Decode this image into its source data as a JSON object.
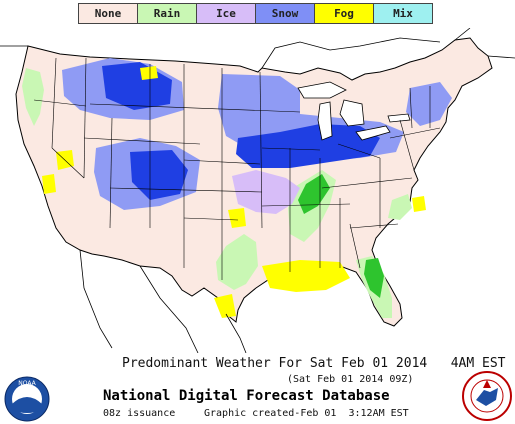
{
  "legend": [
    {
      "label": "None",
      "color": "#fbe9e2"
    },
    {
      "label": "Rain",
      "color": "#c9f7b4"
    },
    {
      "label": "Ice",
      "color": "#d7bdf8"
    },
    {
      "label": "Snow",
      "color": "#7f8ff6"
    },
    {
      "label": "Fog",
      "color": "#ffff00"
    },
    {
      "label": "Mix",
      "color": "#9ef0f0"
    }
  ],
  "colors": {
    "none": "#fbe9e2",
    "rain_light": "#c9f7b4",
    "rain_heavy": "#2ec42e",
    "ice": "#d7bdf8",
    "snow_light": "#8f9bf4",
    "snow_heavy": "#1f3fe3",
    "fog": "#ffff00",
    "water": "#ffffff",
    "border": "#000000"
  },
  "captions": {
    "title": "Predominant Weather For Sat Feb 01 2014   4AM EST",
    "valid": "(Sat Feb 01 2014 09Z)",
    "database": "National Digital Forecast Database",
    "issuance": "08z issuance",
    "created": "Graphic created-Feb 01  3:12AM EST"
  },
  "logos": {
    "noaa": "NOAA",
    "nws": "NATIONAL WEATHER SERVICE"
  }
}
